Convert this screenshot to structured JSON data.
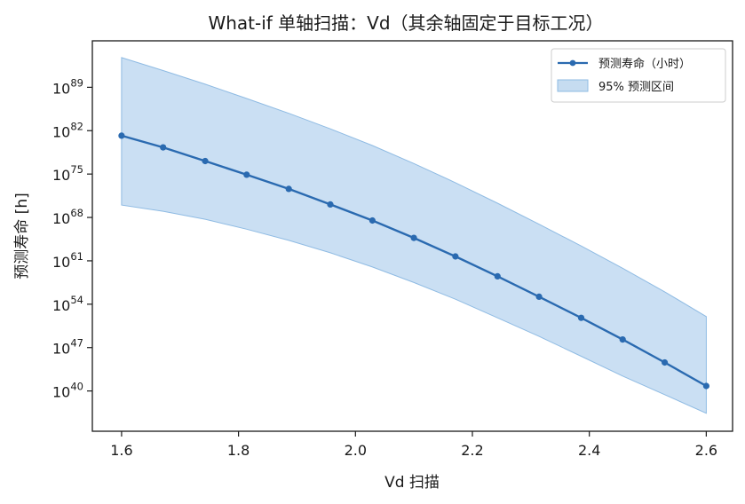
{
  "chart_data": {
    "type": "line",
    "title": "What-if 单轴扫描：Vd（其余轴固定于目标工况）",
    "xlabel": "Vd 扫描",
    "ylabel": "预测寿命 [h]",
    "x_ticks": [
      "1.6",
      "1.8",
      "2.0",
      "2.2",
      "2.4",
      "2.6"
    ],
    "x_tick_values": [
      1.6,
      1.8,
      2.0,
      2.2,
      2.4,
      2.6
    ],
    "y_scale": "log",
    "y_ticks": [
      "10^89",
      "10^82",
      "10^75",
      "10^68",
      "10^61",
      "10^54",
      "10^47",
      "10^40"
    ],
    "y_tick_exponents": [
      89,
      82,
      75,
      68,
      61,
      54,
      47,
      40
    ],
    "xlim": [
      1.55,
      2.645
    ],
    "ylim_log10": [
      33.5,
      96.5
    ],
    "grid": false,
    "legend_position": "top-right",
    "colors": {
      "line": "#2a6ab0",
      "band": "#aaccec",
      "band_edge": "#8fbbe3"
    },
    "series": [
      {
        "name": "预测寿命（小时）",
        "x": [
          1.6,
          1.671,
          1.743,
          1.814,
          1.886,
          1.957,
          2.029,
          2.1,
          2.171,
          2.243,
          2.314,
          2.386,
          2.457,
          2.529,
          2.6
        ],
        "log10_y": [
          81.2,
          79.3,
          77.1,
          74.9,
          72.6,
          70.1,
          67.5,
          64.7,
          61.7,
          58.5,
          55.2,
          51.8,
          48.3,
          44.6,
          40.8
        ]
      }
    ],
    "band": {
      "name": "95% 预测区间",
      "x": [
        1.6,
        1.671,
        1.743,
        1.814,
        1.886,
        1.957,
        2.029,
        2.1,
        2.171,
        2.243,
        2.314,
        2.386,
        2.457,
        2.529,
        2.6
      ],
      "upper_log10": [
        93.8,
        91.7,
        89.5,
        87.2,
        84.8,
        82.3,
        79.6,
        76.7,
        73.6,
        70.3,
        66.9,
        63.4,
        59.8,
        56.0,
        52.0
      ],
      "lower_log10": [
        70.0,
        69.0,
        67.7,
        66.1,
        64.3,
        62.3,
        60.0,
        57.5,
        54.8,
        51.8,
        48.8,
        45.6,
        42.4,
        39.4,
        36.4
      ]
    }
  }
}
